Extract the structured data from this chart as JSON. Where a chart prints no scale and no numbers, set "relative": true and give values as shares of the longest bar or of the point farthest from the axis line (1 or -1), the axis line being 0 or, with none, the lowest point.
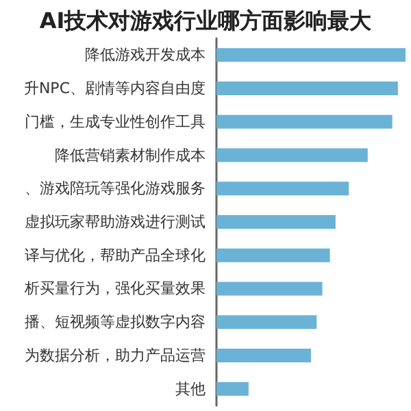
{
  "chart_data": {
    "type": "bar",
    "orientation": "horizontal",
    "relative": true,
    "title": "AI技术对游戏行业哪方面影响最大",
    "categories": [
      "降低游戏开发成本",
      "升NPC、剧情等内容自由度",
      "门槛，生成专业性创作工具",
      "降低营销素材制作成本",
      "、游戏陪玩等强化游戏服务",
      "虚拟玩家帮助游戏进行测试",
      "译与优化，帮助产品全球化",
      "析买量行为，强化买量效果",
      "播、短视频等虚拟数字内容",
      "为数据分析，助力产品运营",
      "其他"
    ],
    "values": [
      1,
      0.96,
      0.93,
      0.8,
      0.7,
      0.63,
      0.6,
      0.56,
      0.53,
      0.5,
      0.17
    ],
    "color": "#6ab3d6"
  }
}
